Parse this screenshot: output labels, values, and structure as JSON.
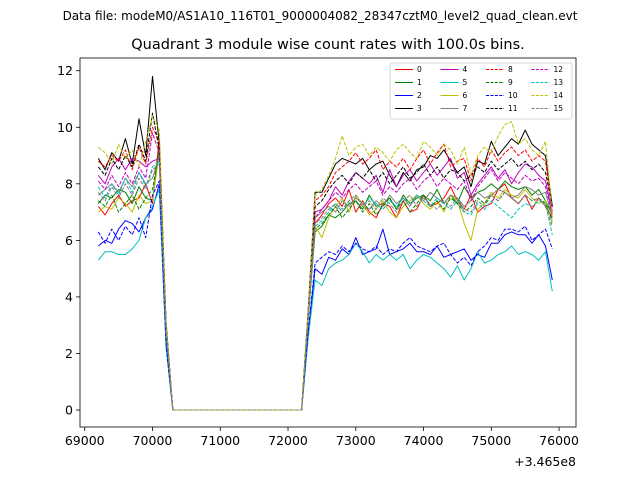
{
  "suptitle": "Data file: modeM0/AS1A10_116T01_9000004082_28347cztM0_level2_quad_clean.evt",
  "chart_data": {
    "type": "line",
    "title": "Quadrant 3 module wise count rates with 100.0s bins.",
    "xlabel": "",
    "ylabel": "",
    "x_offset_label": "+3.465e8",
    "xlim": [
      68930,
      76250
    ],
    "ylim": [
      -0.6,
      12.45
    ],
    "xticks": [
      69000,
      70000,
      71000,
      72000,
      73000,
      74000,
      75000,
      76000
    ],
    "xtick_labels": [
      "69000",
      "70000",
      "71000",
      "72000",
      "73000",
      "74000",
      "75000",
      "76000"
    ],
    "yticks": [
      0,
      2,
      4,
      6,
      8,
      10,
      12
    ],
    "ytick_labels": [
      "0",
      "2",
      "4",
      "6",
      "8",
      "10",
      "12"
    ],
    "grid": false,
    "legend_position": "top-right",
    "x": [
      69200,
      69300,
      69400,
      69500,
      69600,
      69700,
      69800,
      69900,
      70000,
      70100,
      70200,
      70300,
      70400,
      70500,
      70600,
      70700,
      70800,
      70900,
      71000,
      71100,
      71200,
      71300,
      71400,
      71500,
      71600,
      71700,
      71800,
      71900,
      72000,
      72100,
      72200,
      72300,
      72400,
      72500,
      72600,
      72700,
      72800,
      72900,
      73000,
      73100,
      73200,
      73300,
      73400,
      73500,
      73600,
      73700,
      73800,
      73900,
      74000,
      74100,
      74200,
      74300,
      74400,
      74500,
      74600,
      74700,
      74800,
      74900,
      75000,
      75100,
      75200,
      75300,
      75400,
      75500,
      75600,
      75700,
      75800,
      75900
    ],
    "series": [
      {
        "name": "0",
        "color": "#ff0000",
        "dash": "solid",
        "values": [
          7.2,
          6.9,
          7.3,
          7.6,
          7.2,
          7.4,
          7.5,
          8.0,
          7.3,
          9.6,
          2.9,
          0,
          0,
          0,
          0,
          0,
          0,
          0,
          0,
          0,
          0,
          0,
          0,
          0,
          0,
          0,
          0,
          0,
          0,
          0,
          0,
          3.4,
          6.6,
          6.9,
          7.3,
          7.5,
          7.2,
          7.8,
          7.0,
          7.4,
          7.0,
          6.8,
          7.3,
          7.2,
          6.8,
          7.4,
          7.0,
          7.1,
          7.6,
          7.2,
          7.3,
          7.5,
          7.9,
          7.4,
          7.1,
          7.6,
          7.0,
          7.2,
          7.3,
          7.8,
          8.0,
          7.5,
          7.3,
          7.6,
          7.1,
          7.5,
          7.2,
          6.8
        ]
      },
      {
        "name": "1",
        "color": "#008000",
        "dash": "solid",
        "values": [
          7.3,
          7.6,
          7.5,
          7.8,
          7.7,
          7.3,
          7.9,
          7.5,
          7.4,
          9.3,
          2.8,
          0,
          0,
          0,
          0,
          0,
          0,
          0,
          0,
          0,
          0,
          0,
          0,
          0,
          0,
          0,
          0,
          0,
          0,
          0,
          0,
          3.3,
          6.3,
          6.5,
          6.9,
          6.8,
          7.0,
          7.3,
          7.4,
          7.1,
          7.6,
          7.2,
          7.3,
          7.5,
          7.1,
          7.6,
          7.3,
          7.5,
          7.6,
          7.4,
          7.8,
          7.3,
          7.6,
          7.3,
          7.9,
          7.5,
          7.7,
          7.8,
          8.0,
          7.8,
          8.1,
          7.9,
          7.8,
          7.9,
          7.6,
          7.8,
          7.4,
          6.9
        ]
      },
      {
        "name": "2",
        "color": "#0000ff",
        "dash": "solid",
        "values": [
          5.8,
          6.0,
          5.9,
          6.4,
          6.7,
          6.6,
          6.3,
          6.8,
          7.1,
          8.0,
          2.3,
          0,
          0,
          0,
          0,
          0,
          0,
          0,
          0,
          0,
          0,
          0,
          0,
          0,
          0,
          0,
          0,
          0,
          0,
          0,
          0,
          2.7,
          5.0,
          4.8,
          5.4,
          5.3,
          5.7,
          5.5,
          6.1,
          5.5,
          5.6,
          5.7,
          6.4,
          5.5,
          5.6,
          5.7,
          5.9,
          5.6,
          5.6,
          5.5,
          5.8,
          5.4,
          5.5,
          5.6,
          5.7,
          5.3,
          5.5,
          5.4,
          5.9,
          5.9,
          6.2,
          6.3,
          6.2,
          6.2,
          5.9,
          6.2,
          5.8,
          4.6
        ]
      },
      {
        "name": "3",
        "color": "#000000",
        "dash": "solid",
        "values": [
          8.9,
          8.5,
          9.1,
          8.8,
          9.6,
          8.7,
          10.3,
          9.0,
          11.8,
          9.4,
          3.1,
          0,
          0,
          0,
          0,
          0,
          0,
          0,
          0,
          0,
          0,
          0,
          0,
          0,
          0,
          0,
          0,
          0,
          0,
          0,
          0,
          3.6,
          7.7,
          7.7,
          8.2,
          8.7,
          8.9,
          8.8,
          8.7,
          8.9,
          8.5,
          8.7,
          8.8,
          8.3,
          7.9,
          8.4,
          8.1,
          8.5,
          8.6,
          9.0,
          8.9,
          9.2,
          8.8,
          8.4,
          8.6,
          7.9,
          8.8,
          8.7,
          9.5,
          9.0,
          9.3,
          9.6,
          9.4,
          9.9,
          9.4,
          9.2,
          9.0,
          7.2
        ]
      },
      {
        "name": "4",
        "color": "#bf00bf",
        "dash": "solid",
        "values": [
          8.3,
          8.0,
          8.6,
          8.9,
          8.5,
          8.9,
          8.8,
          8.6,
          8.8,
          8.9,
          2.9,
          0,
          0,
          0,
          0,
          0,
          0,
          0,
          0,
          0,
          0,
          0,
          0,
          0,
          0,
          0,
          0,
          0,
          0,
          0,
          0,
          3.4,
          7.0,
          7.1,
          7.4,
          7.9,
          7.6,
          8.1,
          8.4,
          8.2,
          8.0,
          8.3,
          7.7,
          8.5,
          7.9,
          8.3,
          8.5,
          8.1,
          8.4,
          8.7,
          8.3,
          8.6,
          8.9,
          8.2,
          8.4,
          7.6,
          8.0,
          8.3,
          8.6,
          8.2,
          8.5,
          8.0,
          8.4,
          8.7,
          8.6,
          8.3,
          8.1,
          7.0
        ]
      },
      {
        "name": "5",
        "color": "#00bfbf",
        "dash": "solid",
        "values": [
          5.3,
          5.6,
          5.6,
          5.5,
          5.5,
          5.7,
          6.0,
          6.8,
          7.2,
          7.8,
          2.2,
          0,
          0,
          0,
          0,
          0,
          0,
          0,
          0,
          0,
          0,
          0,
          0,
          0,
          0,
          0,
          0,
          0,
          0,
          0,
          0,
          2.6,
          4.6,
          4.4,
          5.0,
          5.2,
          5.3,
          5.5,
          5.9,
          5.6,
          5.2,
          5.5,
          5.3,
          5.5,
          5.3,
          5.5,
          5.0,
          5.3,
          5.5,
          5.4,
          5.2,
          5.0,
          4.7,
          5.1,
          4.6,
          5.0,
          5.6,
          5.2,
          5.3,
          5.5,
          5.6,
          5.8,
          5.5,
          5.6,
          5.5,
          5.3,
          5.6,
          4.2
        ]
      },
      {
        "name": "6",
        "color": "#bfbf00",
        "dash": "solid",
        "values": [
          7.0,
          7.2,
          7.1,
          7.5,
          7.3,
          7.0,
          7.6,
          7.3,
          7.4,
          9.1,
          2.8,
          0,
          0,
          0,
          0,
          0,
          0,
          0,
          0,
          0,
          0,
          0,
          0,
          0,
          0,
          0,
          0,
          0,
          0,
          0,
          0,
          3.3,
          6.5,
          6.1,
          6.8,
          7.2,
          7.5,
          7.0,
          7.6,
          7.3,
          6.9,
          7.1,
          7.4,
          7.0,
          6.8,
          7.2,
          7.4,
          7.6,
          7.3,
          7.1,
          7.4,
          7.0,
          7.6,
          7.4,
          6.6,
          6.0,
          7.1,
          7.3,
          7.7,
          7.5,
          7.8,
          7.6,
          7.5,
          7.8,
          7.5,
          7.3,
          7.4,
          6.6
        ]
      },
      {
        "name": "7",
        "color": "#808080",
        "dash": "solid",
        "values": [
          7.6,
          7.8,
          8.0,
          7.7,
          8.2,
          7.9,
          8.4,
          8.0,
          8.2,
          9.0,
          2.9,
          0,
          0,
          0,
          0,
          0,
          0,
          0,
          0,
          0,
          0,
          0,
          0,
          0,
          0,
          0,
          0,
          0,
          0,
          0,
          0,
          3.4,
          6.8,
          7.0,
          7.2,
          7.0,
          7.4,
          7.2,
          7.5,
          7.3,
          7.1,
          7.4,
          7.2,
          7.6,
          7.3,
          7.5,
          7.2,
          7.6,
          7.4,
          7.7,
          7.5,
          7.3,
          7.6,
          7.5,
          7.2,
          7.4,
          7.7,
          7.5,
          7.6,
          7.8,
          7.7,
          7.5,
          7.6,
          7.9,
          7.8,
          7.6,
          7.7,
          6.8
        ]
      },
      {
        "name": "8",
        "color": "#ff0000",
        "dash": "dashed",
        "values": [
          8.8,
          8.6,
          9.0,
          8.8,
          9.2,
          8.5,
          9.3,
          8.7,
          10.0,
          9.5,
          3.0,
          0,
          0,
          0,
          0,
          0,
          0,
          0,
          0,
          0,
          0,
          0,
          0,
          0,
          0,
          0,
          0,
          0,
          0,
          0,
          0,
          3.5,
          7.4,
          7.6,
          7.9,
          8.4,
          8.6,
          8.8,
          9.1,
          8.7,
          8.9,
          9.2,
          8.5,
          8.8,
          8.6,
          8.9,
          8.5,
          8.9,
          9.2,
          8.7,
          9.1,
          9.4,
          8.6,
          8.8,
          8.9,
          8.1,
          8.9,
          8.6,
          9.2,
          8.8,
          9.1,
          9.3,
          9.0,
          9.2,
          8.8,
          9.0,
          8.8,
          7.1
        ]
      },
      {
        "name": "9",
        "color": "#008000",
        "dash": "dashed",
        "values": [
          7.4,
          7.2,
          7.6,
          7.0,
          7.3,
          7.6,
          7.1,
          7.5,
          7.8,
          9.2,
          2.8,
          0,
          0,
          0,
          0,
          0,
          0,
          0,
          0,
          0,
          0,
          0,
          0,
          0,
          0,
          0,
          0,
          0,
          0,
          0,
          0,
          3.3,
          6.4,
          6.6,
          6.9,
          7.2,
          6.8,
          7.1,
          7.4,
          7.0,
          7.3,
          6.9,
          7.2,
          7.5,
          7.1,
          7.4,
          7.0,
          7.3,
          7.6,
          7.2,
          7.4,
          7.1,
          7.5,
          7.3,
          7.0,
          7.2,
          7.5,
          7.3,
          7.6,
          7.4,
          7.7,
          7.5,
          7.3,
          7.6,
          7.4,
          7.5,
          7.3,
          6.7
        ]
      },
      {
        "name": "10",
        "color": "#0000ff",
        "dash": "dashed",
        "values": [
          6.3,
          5.9,
          6.4,
          6.0,
          6.5,
          6.2,
          6.8,
          6.1,
          7.6,
          8.1,
          2.3,
          0,
          0,
          0,
          0,
          0,
          0,
          0,
          0,
          0,
          0,
          0,
          0,
          0,
          0,
          0,
          0,
          0,
          0,
          0,
          0,
          2.8,
          5.2,
          5.4,
          5.6,
          5.5,
          5.8,
          5.6,
          5.9,
          5.7,
          5.6,
          5.8,
          5.5,
          5.7,
          5.6,
          5.9,
          6.1,
          5.8,
          5.7,
          5.6,
          5.8,
          5.9,
          5.5,
          5.2,
          5.4,
          5.1,
          5.6,
          5.8,
          6.1,
          6.0,
          6.4,
          6.4,
          6.3,
          6.5,
          6.0,
          6.2,
          6.4,
          5.7
        ]
      },
      {
        "name": "11",
        "color": "#000000",
        "dash": "dashed",
        "values": [
          8.6,
          8.3,
          8.9,
          8.5,
          9.0,
          8.6,
          9.4,
          8.8,
          10.5,
          9.2,
          3.0,
          0,
          0,
          0,
          0,
          0,
          0,
          0,
          0,
          0,
          0,
          0,
          0,
          0,
          0,
          0,
          0,
          0,
          0,
          0,
          0,
          3.5,
          7.2,
          7.4,
          7.8,
          8.1,
          8.3,
          8.0,
          8.4,
          8.2,
          8.5,
          8.1,
          8.4,
          8.0,
          8.3,
          8.6,
          8.2,
          8.4,
          8.7,
          8.3,
          8.6,
          8.2,
          8.5,
          8.4,
          8.1,
          8.3,
          8.6,
          8.4,
          8.8,
          8.5,
          8.7,
          8.9,
          8.6,
          8.8,
          8.5,
          8.7,
          8.4,
          7.2
        ]
      },
      {
        "name": "12",
        "color": "#bf00bf",
        "dash": "dashed",
        "values": [
          8.1,
          7.8,
          8.3,
          7.9,
          8.4,
          8.0,
          8.6,
          8.2,
          9.8,
          9.1,
          2.9,
          0,
          0,
          0,
          0,
          0,
          0,
          0,
          0,
          0,
          0,
          0,
          0,
          0,
          0,
          0,
          0,
          0,
          0,
          0,
          0,
          3.4,
          6.8,
          7.1,
          7.4,
          7.7,
          7.5,
          7.8,
          8.0,
          7.7,
          7.9,
          8.1,
          7.6,
          7.9,
          7.7,
          8.0,
          8.2,
          7.8,
          8.1,
          8.3,
          7.9,
          8.2,
          8.0,
          7.8,
          8.1,
          7.4,
          7.9,
          8.2,
          8.5,
          8.1,
          8.4,
          8.2,
          8.0,
          8.3,
          8.1,
          8.2,
          7.9,
          6.9
        ]
      },
      {
        "name": "13",
        "color": "#00bfbf",
        "dash": "dashed",
        "values": [
          7.9,
          7.5,
          8.0,
          7.6,
          8.2,
          7.7,
          8.4,
          7.9,
          8.6,
          8.8,
          2.8,
          0,
          0,
          0,
          0,
          0,
          0,
          0,
          0,
          0,
          0,
          0,
          0,
          0,
          0,
          0,
          0,
          0,
          0,
          0,
          0,
          3.3,
          6.5,
          6.7,
          7.0,
          7.3,
          7.1,
          7.4,
          7.6,
          7.2,
          7.5,
          7.3,
          7.1,
          7.4,
          7.2,
          7.5,
          7.3,
          7.6,
          7.4,
          7.2,
          7.5,
          7.3,
          7.1,
          7.4,
          7.0,
          6.9,
          7.3,
          7.1,
          7.4,
          7.2,
          7.0,
          6.8,
          7.1,
          7.3,
          7.2,
          7.4,
          7.3,
          6.2
        ]
      },
      {
        "name": "14",
        "color": "#bfbf00",
        "dash": "dashed",
        "values": [
          9.3,
          9.1,
          8.7,
          9.4,
          8.9,
          9.2,
          8.6,
          9.5,
          10.4,
          9.9,
          3.1,
          0,
          0,
          0,
          0,
          0,
          0,
          0,
          0,
          0,
          0,
          0,
          0,
          0,
          0,
          0,
          0,
          0,
          0,
          0,
          0,
          3.6,
          7.6,
          7.8,
          8.3,
          8.9,
          9.7,
          9.0,
          9.3,
          9.4,
          9.0,
          9.3,
          9.1,
          8.8,
          9.2,
          9.4,
          9.1,
          8.9,
          9.5,
          9.3,
          9.0,
          9.4,
          9.2,
          8.7,
          9.3,
          8.3,
          9.0,
          9.3,
          9.1,
          9.7,
          10.1,
          10.2,
          9.4,
          9.6,
          9.2,
          9.0,
          9.5,
          6.9
        ]
      },
      {
        "name": "15",
        "color": "#808080",
        "dash": "dashed",
        "values": [
          7.7,
          7.4,
          7.9,
          7.5,
          8.0,
          7.6,
          8.2,
          7.8,
          8.5,
          8.7,
          2.8,
          0,
          0,
          0,
          0,
          0,
          0,
          0,
          0,
          0,
          0,
          0,
          0,
          0,
          0,
          0,
          0,
          0,
          0,
          0,
          0,
          3.3,
          6.6,
          6.8,
          7.1,
          7.3,
          7.0,
          7.4,
          7.6,
          7.2,
          7.4,
          7.1,
          7.5,
          7.3,
          7.0,
          7.4,
          7.6,
          7.2,
          7.5,
          7.3,
          7.1,
          7.4,
          7.2,
          7.5,
          7.1,
          7.0,
          7.4,
          7.2,
          7.6,
          7.4,
          7.7,
          7.5,
          7.3,
          7.6,
          7.4,
          7.5,
          7.2,
          6.5
        ]
      }
    ]
  }
}
